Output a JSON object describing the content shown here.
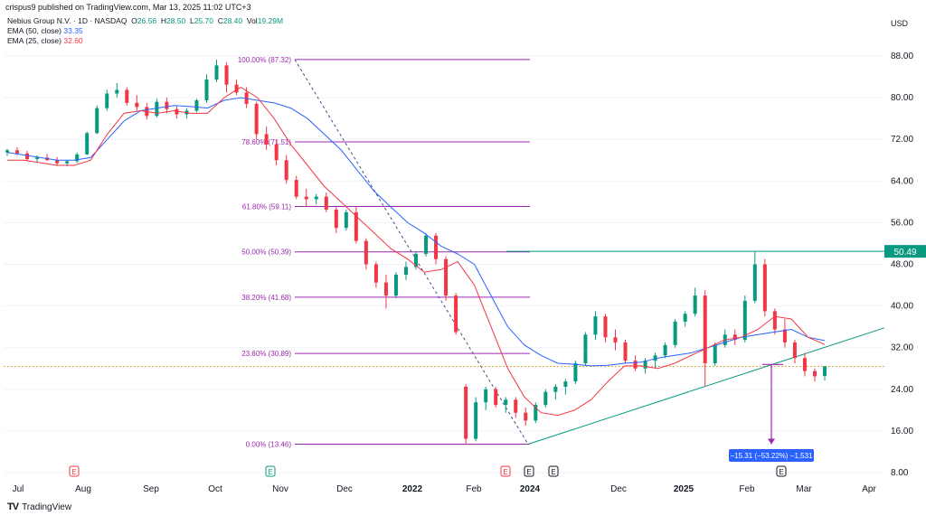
{
  "header": {
    "publish_line": "crispus9 published on TradingView.com, Mar 13, 2025 11:02 UTC+3",
    "symbol": "Nebius Group N.V. · 1D · NASDAQ",
    "ohlc": {
      "O": "26.56",
      "H": "28.50",
      "L": "25.70",
      "C": "28.40",
      "Vol": "19.29M"
    },
    "ema50": {
      "label": "EMA (50, close)",
      "value": "33.35"
    },
    "ema25": {
      "label": "EMA (25, close)",
      "value": "32.60"
    },
    "currency": "USD"
  },
  "brand": {
    "logo": "TV",
    "name": "TradingView"
  },
  "colors": {
    "up": "#089981",
    "down": "#f23645",
    "ema50": "#2962ff",
    "ema25": "#f23645",
    "fib": "#9c27b0",
    "trend": "#089981",
    "grid": "#f0f3fa",
    "axis_text": "#131722",
    "price_badge": "#089981",
    "measure": "#9c27b0",
    "measure_box": "#2962ff"
  },
  "chart_data": {
    "type": "candlestick",
    "title": "",
    "y_axis": {
      "side": "right",
      "ticks": [
        88,
        80,
        72,
        64,
        56,
        48,
        40,
        32,
        24,
        16,
        8
      ],
      "tick_labels": [
        "88.00",
        "80.00",
        "72.00",
        "64.00",
        "56.00",
        "48.00",
        "40.00",
        "32.00",
        "24.00",
        "16.00",
        "8.00"
      ],
      "ylim": [
        8,
        90
      ]
    },
    "x_axis": {
      "labels": [
        "Jul",
        "Aug",
        "Sep",
        "Oct",
        "Nov",
        "Dec",
        "2022",
        "Feb",
        "2024",
        "Dec",
        "2025",
        "Feb",
        "Mar",
        "Apr"
      ],
      "bold_labels": [
        "2022",
        "2024",
        "2025"
      ]
    },
    "earnings_markers": [
      {
        "label": "E",
        "color": "#f23645"
      },
      {
        "label": "E",
        "color": "#089981"
      },
      {
        "label": "E",
        "color": "#f23645"
      },
      {
        "label": "E",
        "color": "#131722"
      },
      {
        "label": "E",
        "color": "#131722"
      },
      {
        "label": "E",
        "color": "#131722"
      }
    ],
    "fibonacci": [
      {
        "ratio": "100.00%",
        "price": 87.32,
        "label": "100.00% (87.32)"
      },
      {
        "ratio": "78.60%",
        "price": 71.51,
        "label": "78.60% (71.51)"
      },
      {
        "ratio": "61.80%",
        "price": 59.11,
        "label": "61.80% (59.11)"
      },
      {
        "ratio": "50.00%",
        "price": 50.39,
        "label": "50.00% (50.39)"
      },
      {
        "ratio": "38.20%",
        "price": 41.68,
        "label": "38.20% (41.68)"
      },
      {
        "ratio": "23.60%",
        "price": 30.89,
        "label": "23.60% (30.89)"
      },
      {
        "ratio": "0.00%",
        "price": 13.46,
        "label": "0.00% (13.46)"
      }
    ],
    "horizontal_level": {
      "price": 50.49,
      "label": "50.49"
    },
    "current_price_line": 28.4,
    "measurement": {
      "label": "−15.31 (−53.22%) −1,531",
      "from": 28.77,
      "to": 13.46
    },
    "series": [
      {
        "name": "EMA (50, close)",
        "values": [
          69.5,
          69.0,
          68.5,
          68.0,
          68.0,
          68.5,
          72.0,
          75.5,
          77.5,
          78.0,
          78.5,
          78.3,
          78.0,
          79.5,
          80.0,
          79.5,
          79.0,
          78.0,
          76.0,
          73.0,
          70.0,
          66.0,
          62.0,
          59.0,
          56.0,
          54.0,
          51.5,
          50.0,
          48.0,
          42.0,
          36.0,
          32.5,
          30.5,
          29.0,
          28.8,
          28.5,
          28.6,
          29.0,
          29.2,
          30.0,
          30.5,
          31.0,
          32.0,
          33.0,
          34.0,
          34.5,
          35.0,
          35.5,
          34.0,
          33.35
        ]
      },
      {
        "name": "EMA (25, close)",
        "values": [
          68.0,
          68.0,
          67.5,
          67.0,
          67.0,
          68.0,
          73.0,
          77.0,
          77.5,
          77.0,
          77.5,
          77.0,
          77.0,
          80.0,
          82.0,
          80.0,
          76.0,
          71.0,
          67.0,
          63.0,
          60.0,
          57.0,
          54.0,
          51.0,
          49.0,
          46.5,
          47.0,
          48.5,
          44.0,
          36.0,
          28.0,
          22.5,
          19.5,
          19.0,
          20.0,
          22.0,
          25.5,
          28.5,
          28.5,
          28.0,
          29.0,
          30.5,
          32.0,
          33.5,
          34.0,
          35.5,
          38.0,
          37.5,
          34.0,
          32.6
        ]
      },
      {
        "name": "candles",
        "ohlc": [
          [
            69.5,
            70.2,
            68.8,
            69.9
          ],
          [
            69.9,
            70.5,
            69.0,
            69.3
          ],
          [
            69.3,
            69.8,
            67.8,
            68.2
          ],
          [
            68.2,
            68.9,
            67.5,
            68.5
          ],
          [
            68.5,
            69.2,
            67.9,
            68.0
          ],
          [
            68.0,
            68.6,
            66.9,
            67.4
          ],
          [
            67.4,
            68.0,
            66.8,
            67.8
          ],
          [
            67.8,
            69.5,
            67.5,
            69.1
          ],
          [
            69.1,
            73.5,
            69.0,
            73.2
          ],
          [
            73.2,
            78.5,
            73.0,
            78.0
          ],
          [
            78.0,
            81.5,
            77.5,
            80.8
          ],
          [
            80.8,
            82.8,
            80.0,
            81.5
          ],
          [
            81.5,
            82.0,
            78.5,
            79.0
          ],
          [
            79.0,
            80.5,
            77.5,
            78.2
          ],
          [
            78.2,
            79.0,
            75.8,
            76.5
          ],
          [
            76.5,
            79.8,
            76.2,
            79.2
          ],
          [
            79.2,
            80.0,
            77.0,
            77.8
          ],
          [
            77.8,
            78.5,
            76.0,
            76.8
          ],
          [
            76.8,
            78.0,
            76.0,
            77.5
          ],
          [
            77.5,
            79.8,
            77.2,
            79.5
          ],
          [
            79.5,
            84.5,
            79.0,
            83.5
          ],
          [
            83.5,
            87.3,
            83.0,
            86.2
          ],
          [
            86.2,
            86.8,
            81.0,
            82.5
          ],
          [
            82.5,
            83.5,
            80.5,
            81.0
          ],
          [
            81.0,
            82.0,
            78.0,
            78.8
          ],
          [
            78.8,
            79.2,
            72.0,
            73.0
          ],
          [
            73.0,
            74.5,
            70.0,
            71.0
          ],
          [
            71.0,
            72.0,
            67.0,
            68.0
          ],
          [
            68.0,
            69.0,
            63.5,
            64.2
          ],
          [
            64.2,
            65.0,
            60.5,
            61.0
          ],
          [
            61.0,
            62.5,
            59.0,
            60.5
          ],
          [
            60.5,
            61.5,
            59.5,
            61.0
          ],
          [
            61.0,
            61.8,
            58.0,
            58.5
          ],
          [
            58.5,
            59.0,
            54.0,
            55.0
          ],
          [
            55.0,
            58.5,
            54.5,
            58.0
          ],
          [
            58.0,
            59.0,
            52.0,
            52.5
          ],
          [
            52.5,
            53.0,
            47.0,
            48.0
          ],
          [
            48.0,
            48.5,
            43.5,
            44.5
          ],
          [
            44.5,
            46.0,
            39.5,
            42.0
          ],
          [
            42.0,
            46.5,
            41.5,
            46.0
          ],
          [
            46.0,
            48.5,
            45.0,
            47.5
          ],
          [
            47.5,
            50.5,
            47.0,
            50.0
          ],
          [
            50.0,
            54.0,
            49.5,
            53.5
          ],
          [
            53.5,
            54.0,
            48.0,
            49.0
          ],
          [
            49.0,
            49.5,
            41.0,
            42.0
          ],
          [
            42.0,
            42.5,
            34.5,
            35.0
          ],
          [
            24.5,
            25.0,
            13.46,
            14.5
          ],
          [
            14.5,
            22.5,
            14.0,
            21.5
          ],
          [
            21.5,
            24.5,
            20.0,
            24.0
          ],
          [
            24.0,
            24.5,
            20.5,
            21.0
          ],
          [
            21.0,
            22.5,
            19.5,
            22.0
          ],
          [
            22.0,
            22.5,
            18.5,
            19.5
          ],
          [
            19.5,
            20.5,
            17.0,
            18.0
          ],
          [
            18.0,
            21.5,
            17.5,
            21.0
          ],
          [
            21.0,
            24.0,
            20.5,
            23.5
          ],
          [
            23.5,
            25.0,
            22.0,
            24.5
          ],
          [
            24.5,
            26.0,
            23.0,
            25.5
          ],
          [
            25.5,
            29.5,
            25.0,
            29.0
          ],
          [
            29.0,
            35.0,
            28.5,
            34.5
          ],
          [
            34.5,
            39.0,
            33.5,
            38.0
          ],
          [
            38.0,
            38.5,
            33.0,
            34.0
          ],
          [
            34.0,
            35.5,
            31.5,
            33.0
          ],
          [
            33.0,
            33.5,
            29.0,
            29.5
          ],
          [
            29.5,
            30.5,
            27.5,
            28.0
          ],
          [
            28.0,
            30.0,
            27.0,
            29.5
          ],
          [
            29.5,
            31.0,
            28.0,
            30.5
          ],
          [
            30.5,
            33.0,
            30.0,
            32.5
          ],
          [
            32.5,
            37.5,
            32.0,
            37.0
          ],
          [
            37.0,
            39.0,
            36.0,
            38.5
          ],
          [
            38.5,
            43.5,
            38.0,
            42.0
          ],
          [
            42.0,
            43.0,
            24.5,
            29.0
          ],
          [
            29.0,
            33.0,
            28.5,
            32.5
          ],
          [
            32.5,
            35.5,
            32.0,
            34.5
          ],
          [
            34.5,
            35.5,
            32.5,
            33.5
          ],
          [
            33.5,
            42.0,
            33.0,
            41.0
          ],
          [
            41.0,
            50.49,
            40.5,
            48.0
          ],
          [
            48.0,
            49.0,
            38.0,
            39.0
          ],
          [
            39.0,
            39.5,
            34.5,
            35.5
          ],
          [
            35.5,
            37.5,
            32.0,
            33.0
          ],
          [
            33.0,
            33.5,
            29.0,
            30.0
          ],
          [
            30.0,
            31.0,
            26.5,
            27.5
          ],
          [
            27.5,
            28.0,
            25.5,
            26.5
          ],
          [
            26.56,
            28.5,
            25.7,
            28.4
          ]
        ]
      }
    ]
  }
}
